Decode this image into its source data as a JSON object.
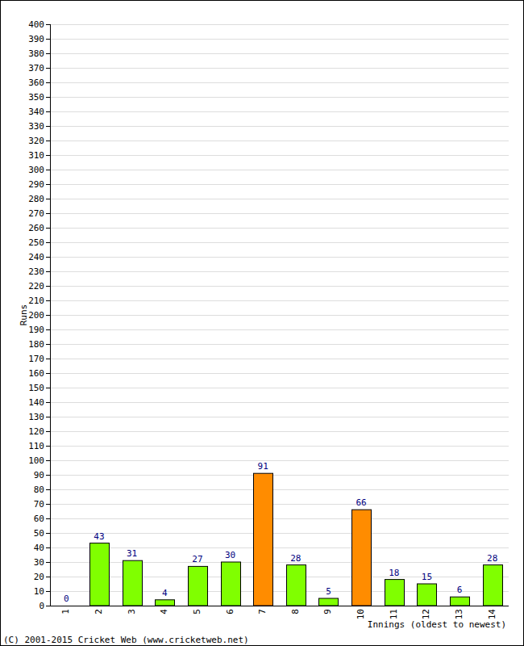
{
  "chart_data": {
    "type": "bar",
    "ylabel": "Runs",
    "xlabel": "Innings (oldest to newest)",
    "annotations": [
      "(C) 2001-2015 Cricket Web (www.cricketweb.net)"
    ],
    "categories": [
      "1",
      "2",
      "3",
      "4",
      "5",
      "6",
      "7",
      "8",
      "9",
      "10",
      "11",
      "12",
      "13",
      "14"
    ],
    "values": [
      0,
      43,
      31,
      4,
      27,
      30,
      91,
      28,
      5,
      66,
      18,
      15,
      6,
      28
    ],
    "colors": [
      "#80ff00",
      "#80ff00",
      "#80ff00",
      "#80ff00",
      "#80ff00",
      "#80ff00",
      "#ff8c00",
      "#80ff00",
      "#80ff00",
      "#ff8c00",
      "#80ff00",
      "#80ff00",
      "#80ff00",
      "#80ff00"
    ],
    "ylim": [
      0,
      400
    ],
    "yticks": [
      0,
      10,
      20,
      30,
      40,
      50,
      60,
      70,
      80,
      90,
      100,
      110,
      120,
      130,
      140,
      150,
      160,
      170,
      180,
      190,
      200,
      210,
      220,
      230,
      240,
      250,
      260,
      270,
      280,
      290,
      300,
      310,
      320,
      330,
      340,
      350,
      360,
      370,
      380,
      390,
      400
    ],
    "grid": true,
    "data_labels": true
  }
}
